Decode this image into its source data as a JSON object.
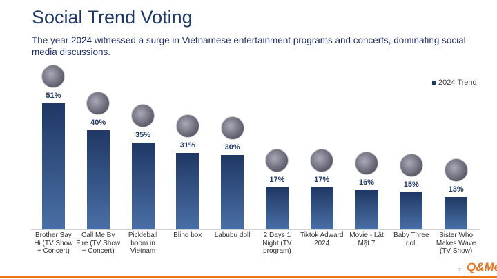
{
  "chart_data": {
    "type": "bar",
    "title": "Social Trend Voting",
    "subtitle": "The year 2024 witnessed a surge in Vietnamese entertainment programs and concerts, dominating social media discussions.",
    "categories": [
      "Brother Say Hi (TV Show + Concert)",
      "Call Me By Fire (TV Show + Concert)",
      "Pickleball boom in Vietnam",
      "Blind box",
      "Labubu doll",
      "2 Days 1 Night (TV program)",
      "Tiktok Adward 2024",
      "Movie - Lật Mặt 7",
      "Baby Three doll",
      "Sister Who Makes Wave (TV Show)"
    ],
    "series": [
      {
        "name": "2024 Trend",
        "color": "#1f3864",
        "values": [
          51,
          40,
          35,
          31,
          30,
          17,
          17,
          16,
          15,
          13
        ],
        "value_labels": [
          "51%",
          "40%",
          "35%",
          "31%",
          "30%",
          "17%",
          "17%",
          "16%",
          "15%",
          "13%"
        ]
      }
    ],
    "page_number": "2",
    "logo": "Q&Me"
  }
}
